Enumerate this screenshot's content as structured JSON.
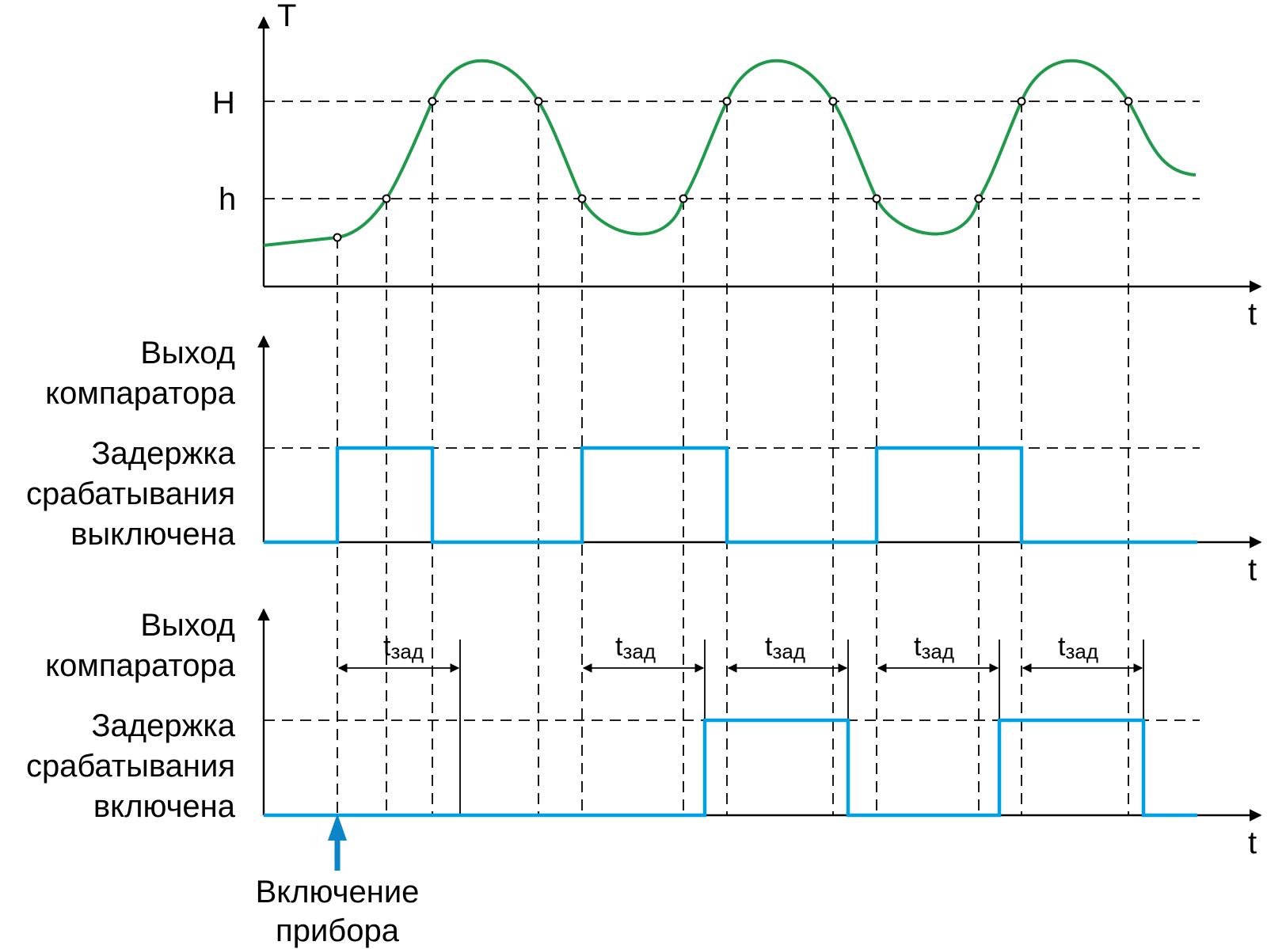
{
  "labels": {
    "temperature_axis": "T",
    "time_axis": "t",
    "upper_threshold": "H",
    "lower_threshold": "h",
    "panel2_line1": "Выход",
    "panel2_line2": "компаратора",
    "panel2_line3": "Задержка",
    "panel2_line4": "срабатывания",
    "panel2_line5": "выключена",
    "panel3_line1": "Выход",
    "panel3_line2": "компаратора",
    "panel3_line3": "Задержка",
    "panel3_line4": "срабатывания",
    "panel3_line5": "включена",
    "delay_main": "t",
    "delay_sub": "зад",
    "power_on_line1": "Включение",
    "power_on_line2": "прибора"
  },
  "colors": {
    "temperature_curve": "#1f9a4a",
    "comparator_output": "#00a0e3",
    "power_on_arrow": "#0a86c8",
    "axes": "#000000"
  },
  "icons": {
    "power_on_marker": "up-arrow-icon"
  }
}
